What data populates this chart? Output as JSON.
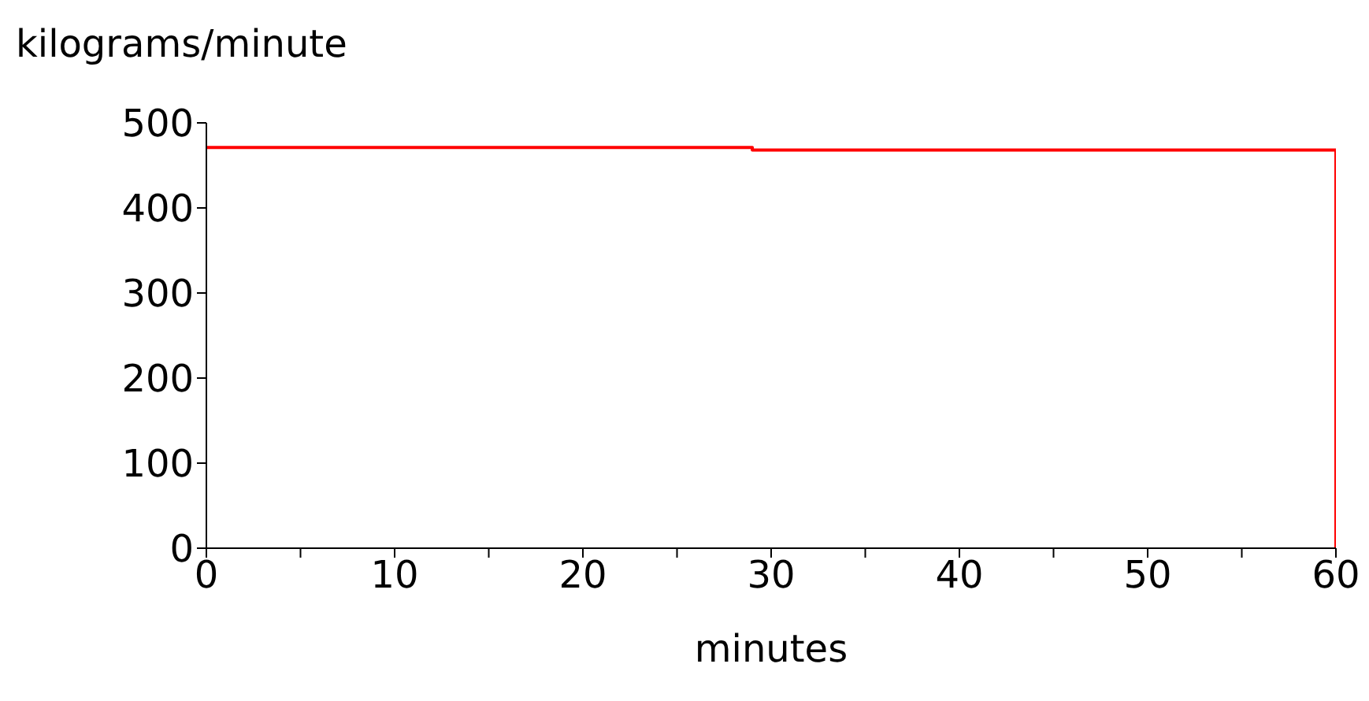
{
  "chart_data": {
    "type": "step",
    "ylabel": "kilograms/minute",
    "xlabel": "minutes",
    "x": [
      0,
      29,
      60,
      60
    ],
    "series": [
      {
        "color": "#ff0000",
        "values": [
          471,
          468,
          468,
          0
        ]
      }
    ],
    "xlim": [
      0,
      60
    ],
    "ylim": [
      0,
      500
    ],
    "xticks": [
      0,
      {
        "value": 5,
        "label": null
      },
      10,
      {
        "value": 15,
        "label": null
      },
      20,
      {
        "value": 25,
        "label": null
      },
      30,
      {
        "value": 35,
        "label": null
      },
      40,
      {
        "value": 45,
        "label": null
      },
      50,
      {
        "value": 55,
        "label": null
      },
      60
    ],
    "yticks": [
      0,
      100,
      200,
      300,
      400,
      500
    ],
    "grid": false,
    "legend": false,
    "marker": "none",
    "line_style": "solid"
  }
}
